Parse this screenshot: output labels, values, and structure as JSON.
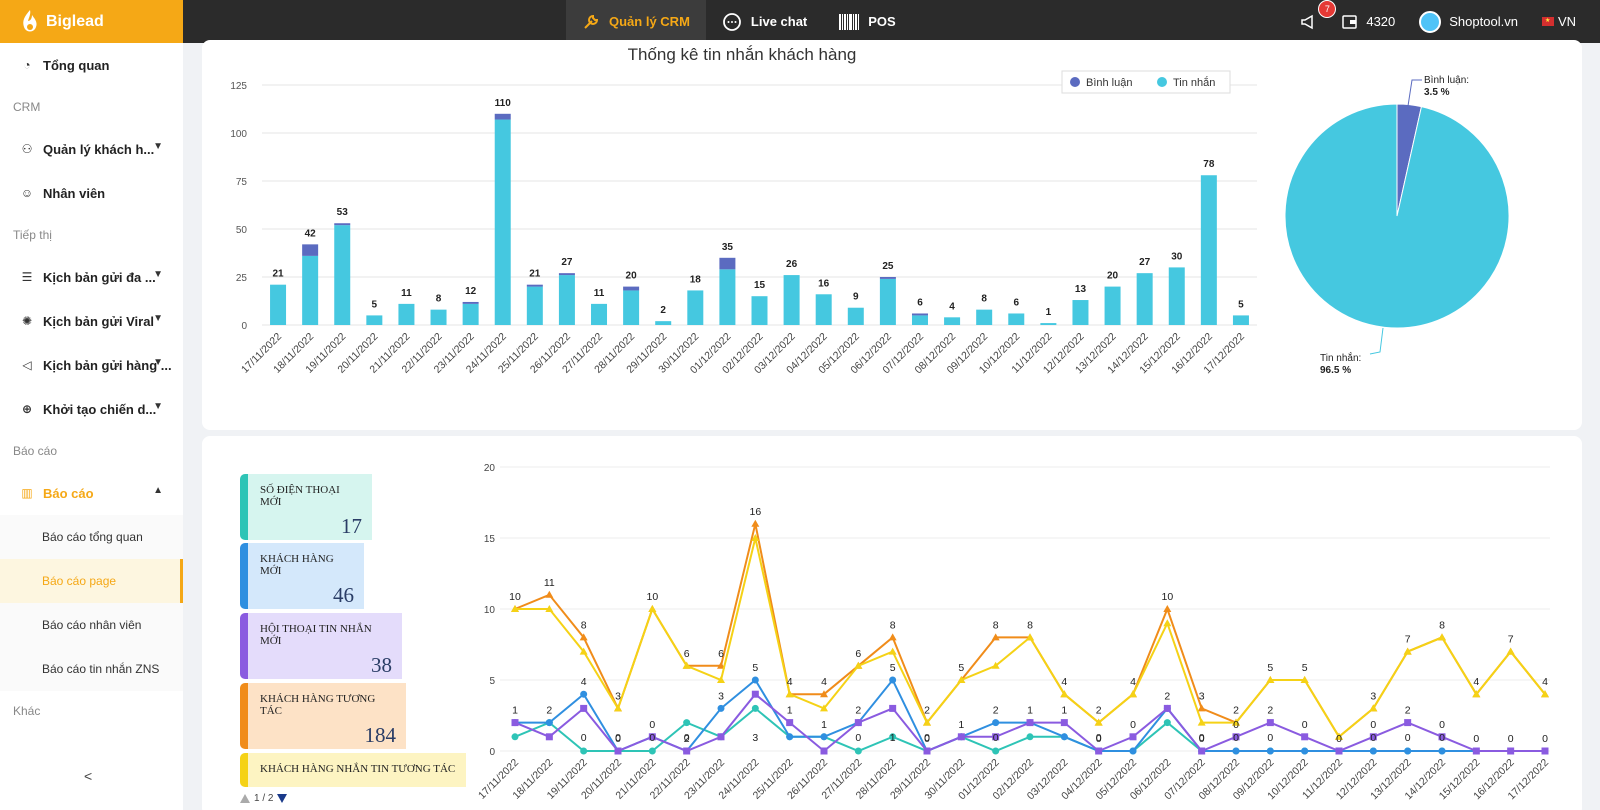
{
  "app": {
    "brand": "Biglead"
  },
  "nav": [
    {
      "label": "Quản lý CRM",
      "icon": "wrench-icon",
      "active": true
    },
    {
      "label": "Live chat",
      "icon": "chat-bubble-icon",
      "active": false
    },
    {
      "label": "POS",
      "icon": "barcode-icon",
      "active": false
    }
  ],
  "topright": {
    "notifications": "7",
    "credits": "4320",
    "shop": "Shoptool.vn",
    "lang": "VN"
  },
  "sidebar": {
    "overview": "Tổng quan",
    "crm_section": "CRM",
    "customers": "Quản lý khách h...",
    "staff": "Nhân viên",
    "marketing_section": "Tiếp thị",
    "script1": "Kịch bản gửi đa ...",
    "script2": "Kịch bản gửi Viral",
    "script3": "Kịch bản gửi hàng ...",
    "campaign": "Khởi tạo chiến d...",
    "report_section": "Báo cáo",
    "report": "Báo cáo",
    "sub": [
      "Báo cáo tổng quan",
      "Báo cáo page",
      "Báo cáo nhân viên",
      "Báo cáo tin nhắn ZNS"
    ],
    "other_section": "Khác"
  },
  "stats": [
    {
      "label": "SỐ ĐIỆN THOẠI MỚI",
      "value": "17",
      "color": "#2ec4b6",
      "bg": "#d6f5ef"
    },
    {
      "label": "KHÁCH HÀNG MỚI",
      "value": "46",
      "color": "#2f8fe0",
      "bg": "#d4e8fb"
    },
    {
      "label": "HỘI THOẠI TIN NHẮN MỚI",
      "value": "38",
      "color": "#8a5be0",
      "bg": "#e4dcfb"
    },
    {
      "label": "KHÁCH HÀNG TƯƠNG TÁC",
      "value": "184",
      "color": "#f08c1a",
      "bg": "#fde2c6"
    },
    {
      "label": "KHÁCH HÀNG NHẮN TIN TƯƠNG TÁC",
      "value": "",
      "color": "#f5d216",
      "bg": "#fdf4c2"
    }
  ],
  "pager": "1 / 2",
  "chart_data": [
    {
      "type": "bar",
      "title": "Thống kê tin nhắn khách hàng",
      "legend_position": "top-right",
      "ylim": [
        0,
        125
      ],
      "yticks": [
        0,
        25,
        50,
        75,
        100,
        125
      ],
      "categories": [
        "17/11/2022",
        "18/11/2022",
        "19/11/2022",
        "20/11/2022",
        "21/11/2022",
        "22/11/2022",
        "23/11/2022",
        "24/11/2022",
        "25/11/2022",
        "26/11/2022",
        "27/11/2022",
        "28/11/2022",
        "29/11/2022",
        "30/11/2022",
        "01/12/2022",
        "02/12/2022",
        "03/12/2022",
        "04/12/2022",
        "05/12/2022",
        "06/12/2022",
        "07/12/2022",
        "08/12/2022",
        "09/12/2022",
        "10/12/2022",
        "11/12/2022",
        "12/12/2022",
        "13/12/2022",
        "14/12/2022",
        "15/12/2022",
        "16/12/2022",
        "17/12/2022"
      ],
      "totals": [
        21,
        42,
        53,
        5,
        11,
        8,
        12,
        110,
        21,
        27,
        11,
        20,
        2,
        18,
        35,
        15,
        26,
        16,
        9,
        25,
        6,
        4,
        8,
        6,
        1,
        13,
        20,
        27,
        30,
        78,
        5
      ],
      "series": [
        {
          "name": "Bình luận",
          "color": "#5b6bc0",
          "values": [
            0,
            6,
            1,
            0,
            0,
            0,
            1,
            3,
            1,
            1,
            0,
            2,
            0,
            0,
            6,
            0,
            0,
            0,
            0,
            1,
            1,
            0,
            0,
            0,
            0,
            0,
            0,
            0,
            0,
            0,
            0
          ]
        },
        {
          "name": "Tin nhắn",
          "color": "#45c8e0",
          "values": [
            21,
            36,
            52,
            5,
            11,
            8,
            11,
            107,
            20,
            26,
            11,
            18,
            2,
            18,
            29,
            15,
            26,
            16,
            9,
            24,
            5,
            4,
            8,
            6,
            1,
            13,
            20,
            27,
            30,
            78,
            5
          ]
        }
      ]
    },
    {
      "type": "pie",
      "slices": [
        {
          "name": "Bình luận",
          "value": 3.5,
          "label": "Bình luận:",
          "pct": "3.5 %",
          "color": "#5b6bc0"
        },
        {
          "name": "Tin nhắn",
          "value": 96.5,
          "label": "Tin nhắn:",
          "pct": "96.5 %",
          "color": "#45c8e0"
        }
      ]
    },
    {
      "type": "line",
      "ylim": [
        0,
        20
      ],
      "yticks": [
        0,
        5,
        10,
        15,
        20
      ],
      "categories": [
        "17/11/2022",
        "18/11/2022",
        "19/11/2022",
        "20/11/2022",
        "21/11/2022",
        "22/11/2022",
        "23/11/2022",
        "24/11/2022",
        "25/11/2022",
        "26/11/2022",
        "27/11/2022",
        "28/11/2022",
        "29/11/2022",
        "30/11/2022",
        "01/12/2022",
        "02/12/2022",
        "03/12/2022",
        "04/12/2022",
        "05/12/2022",
        "06/12/2022",
        "07/12/2022",
        "08/12/2022",
        "09/12/2022",
        "10/12/2022",
        "11/12/2022",
        "12/12/2022",
        "13/12/2022",
        "14/12/2022",
        "15/12/2022",
        "16/12/2022",
        "17/12/2022"
      ],
      "series": [
        {
          "name": "SỐ ĐIỆN THOẠI MỚI",
          "color": "#2ec4b6",
          "values": [
            1,
            2,
            0,
            0,
            0,
            2,
            1,
            3,
            1,
            1,
            0,
            1,
            0,
            1,
            0,
            1,
            1,
            0,
            0,
            2,
            0,
            0,
            0,
            0,
            0,
            0,
            0,
            0,
            0,
            0,
            0
          ]
        },
        {
          "name": "KHÁCH HÀNG MỚI",
          "color": "#2f8fe0",
          "values": [
            2,
            2,
            4,
            0,
            1,
            0,
            3,
            5,
            1,
            1,
            2,
            5,
            0,
            1,
            2,
            2,
            1,
            0,
            0,
            3,
            0,
            0,
            0,
            0,
            0,
            0,
            0,
            0,
            0,
            0,
            0
          ]
        },
        {
          "name": "HỘI THOẠI TIN NHẮN MỚI",
          "color": "#8a5be0",
          "values": [
            2,
            1,
            3,
            0,
            1,
            0,
            1,
            4,
            2,
            0,
            2,
            3,
            0,
            1,
            1,
            2,
            2,
            0,
            1,
            3,
            0,
            1,
            2,
            1,
            0,
            1,
            2,
            1,
            0,
            0,
            0
          ]
        },
        {
          "name": "KHÁCH HÀNG TƯƠNG TÁC",
          "color": "#f08c1a",
          "values": [
            10,
            11,
            8,
            3,
            10,
            6,
            6,
            16,
            4,
            4,
            6,
            8,
            2,
            5,
            8,
            8,
            4,
            2,
            4,
            10,
            3,
            2,
            5,
            5,
            1,
            3,
            7,
            8,
            4,
            7,
            4
          ]
        },
        {
          "name": "KHÁCH HÀNG NHẮN TIN TƯƠNG TÁC",
          "color": "#f5d216",
          "values": [
            10,
            10,
            7,
            3,
            10,
            6,
            5,
            15,
            4,
            3,
            6,
            7,
            2,
            5,
            6,
            8,
            4,
            2,
            4,
            9,
            2,
            2,
            5,
            5,
            1,
            3,
            7,
            8,
            4,
            7,
            4
          ]
        }
      ],
      "point_labels": [
        "10",
        "11",
        "8",
        "3",
        "10",
        "6",
        "6",
        "16",
        "4",
        "4",
        "6",
        "8",
        "2",
        "5",
        "8",
        "8",
        "4",
        "2",
        "4",
        "10",
        "3",
        "2",
        "5",
        "5",
        "",
        "3",
        "7",
        "8",
        "4",
        "7",
        "4"
      ],
      "low_labels": [
        "1",
        "2",
        "4",
        "0",
        "0",
        "2",
        "3",
        "5",
        "1",
        "1",
        "2",
        "5",
        "0",
        "1",
        "2",
        "1",
        "1",
        "0",
        "0",
        "2",
        "0",
        "0",
        "2",
        "0",
        "0",
        "0",
        "2",
        "0",
        "0",
        "0",
        "0"
      ],
      "zero_labels": [
        "",
        "",
        "0",
        "0",
        "0",
        "0",
        "",
        "3",
        "",
        "",
        "0",
        "1",
        "0",
        "",
        "0",
        "",
        "",
        "0",
        "",
        "",
        "0",
        "0",
        "0",
        "",
        "",
        "0",
        "0",
        "0",
        "",
        "",
        ""
      ]
    }
  ]
}
